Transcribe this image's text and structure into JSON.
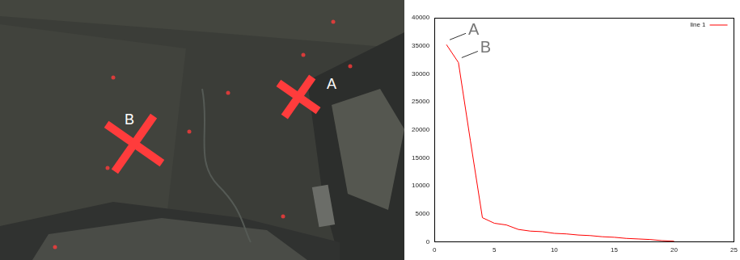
{
  "map": {
    "markers": [
      "A",
      "B"
    ]
  },
  "chart_data": {
    "type": "line",
    "x": [
      1,
      2,
      3,
      4,
      5,
      6,
      7,
      8,
      9,
      10,
      11,
      12,
      13,
      14,
      15,
      16,
      17,
      18,
      19,
      20
    ],
    "series": [
      {
        "name": "line 1",
        "color": "#ff0000",
        "values": [
          35200,
          32000,
          18000,
          4300,
          3300,
          3000,
          2200,
          1900,
          1800,
          1500,
          1400,
          1200,
          1100,
          900,
          800,
          600,
          500,
          400,
          200,
          100
        ]
      }
    ],
    "annotations": [
      {
        "text": "A",
        "x": 1,
        "y": 35200
      },
      {
        "text": "B",
        "x": 2,
        "y": 32000
      }
    ],
    "xlim": [
      0,
      25
    ],
    "xticks": [
      0,
      5,
      10,
      15,
      20,
      25
    ],
    "ylim": [
      0,
      40000
    ],
    "yticks": [
      0,
      5000,
      10000,
      15000,
      20000,
      25000,
      30000,
      35000,
      40000
    ],
    "grid": false,
    "legend": "top-right"
  }
}
